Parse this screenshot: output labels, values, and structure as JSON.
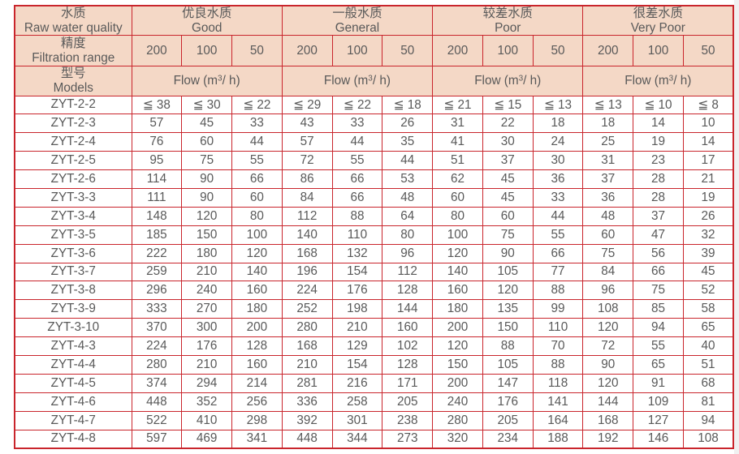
{
  "page": {
    "background": "#ffffff",
    "edge_strip_color": "#f0f0f0"
  },
  "table": {
    "border_color": "#c9252c",
    "header_fill": "#f4d8c6",
    "text_color": "#595959",
    "corner": {
      "row1_zh": "水质",
      "row1_en": "Raw water quality",
      "row2_zh": "精度",
      "row2_en": "Filtration range",
      "row3_zh": "型号",
      "row3_en": "Models"
    },
    "groups": [
      {
        "zh": "优良水质",
        "en": "Good"
      },
      {
        "zh": "一般水质",
        "en": "General"
      },
      {
        "zh": "较差水质",
        "en": "Poor"
      },
      {
        "zh": "很差水质",
        "en": "Very Poor"
      }
    ],
    "precision_values": [
      "200",
      "100",
      "50"
    ],
    "flow_label": {
      "pre": "Flow (m",
      "sup": "3",
      "post": "/ h)"
    },
    "rows": [
      {
        "model": "ZYT-2-2",
        "values": [
          "≦ 38",
          "≦ 30",
          "≦ 22",
          "≦ 29",
          "≦ 22",
          "≦ 18",
          "≦ 21",
          "≦ 15",
          "≦ 13",
          "≦ 13",
          "≦ 10",
          "≦ 8"
        ]
      },
      {
        "model": "ZYT-2-3",
        "values": [
          "57",
          "45",
          "33",
          "43",
          "33",
          "26",
          "31",
          "22",
          "18",
          "18",
          "14",
          "10"
        ]
      },
      {
        "model": "ZYT-2-4",
        "values": [
          "76",
          "60",
          "44",
          "57",
          "44",
          "35",
          "41",
          "30",
          "24",
          "25",
          "19",
          "14"
        ]
      },
      {
        "model": "ZYT-2-5",
        "values": [
          "95",
          "75",
          "55",
          "72",
          "55",
          "44",
          "51",
          "37",
          "30",
          "31",
          "23",
          "17"
        ]
      },
      {
        "model": "ZYT-2-6",
        "values": [
          "114",
          "90",
          "66",
          "86",
          "66",
          "53",
          "62",
          "45",
          "36",
          "37",
          "28",
          "21"
        ]
      },
      {
        "model": "ZYT-3-3",
        "values": [
          "111",
          "90",
          "60",
          "84",
          "66",
          "48",
          "60",
          "45",
          "33",
          "36",
          "28",
          "19"
        ]
      },
      {
        "model": "ZYT-3-4",
        "values": [
          "148",
          "120",
          "80",
          "112",
          "88",
          "64",
          "80",
          "60",
          "44",
          "48",
          "37",
          "26"
        ]
      },
      {
        "model": "ZYT-3-5",
        "values": [
          "185",
          "150",
          "100",
          "140",
          "110",
          "80",
          "100",
          "75",
          "55",
          "60",
          "47",
          "32"
        ]
      },
      {
        "model": "ZYT-3-6",
        "values": [
          "222",
          "180",
          "120",
          "168",
          "132",
          "96",
          "120",
          "90",
          "66",
          "75",
          "56",
          "39"
        ]
      },
      {
        "model": "ZYT-3-7",
        "values": [
          "259",
          "210",
          "140",
          "196",
          "154",
          "112",
          "140",
          "105",
          "77",
          "84",
          "66",
          "45"
        ]
      },
      {
        "model": "ZYT-3-8",
        "values": [
          "296",
          "240",
          "160",
          "224",
          "176",
          "128",
          "160",
          "120",
          "88",
          "96",
          "75",
          "52"
        ]
      },
      {
        "model": "ZYT-3-9",
        "values": [
          "333",
          "270",
          "180",
          "252",
          "198",
          "144",
          "180",
          "135",
          "99",
          "108",
          "85",
          "58"
        ]
      },
      {
        "model": "ZYT-3-10",
        "values": [
          "370",
          "300",
          "200",
          "280",
          "210",
          "160",
          "200",
          "150",
          "110",
          "120",
          "94",
          "65"
        ]
      },
      {
        "model": "ZYT-4-3",
        "values": [
          "224",
          "176",
          "128",
          "168",
          "129",
          "102",
          "120",
          "88",
          "70",
          "72",
          "55",
          "40"
        ]
      },
      {
        "model": "ZYT-4-4",
        "values": [
          "280",
          "210",
          "160",
          "210",
          "154",
          "128",
          "150",
          "105",
          "88",
          "90",
          "65",
          "51"
        ]
      },
      {
        "model": "ZYT-4-5",
        "values": [
          "374",
          "294",
          "214",
          "281",
          "216",
          "171",
          "200",
          "147",
          "118",
          "120",
          "91",
          "68"
        ]
      },
      {
        "model": "ZYT-4-6",
        "values": [
          "448",
          "352",
          "256",
          "336",
          "258",
          "205",
          "240",
          "176",
          "141",
          "144",
          "109",
          "81"
        ]
      },
      {
        "model": "ZYT-4-7",
        "values": [
          "522",
          "410",
          "298",
          "392",
          "301",
          "238",
          "280",
          "205",
          "164",
          "168",
          "127",
          "94"
        ]
      },
      {
        "model": "ZYT-4-8",
        "values": [
          "597",
          "469",
          "341",
          "448",
          "344",
          "273",
          "320",
          "234",
          "188",
          "192",
          "146",
          "108"
        ]
      }
    ]
  }
}
